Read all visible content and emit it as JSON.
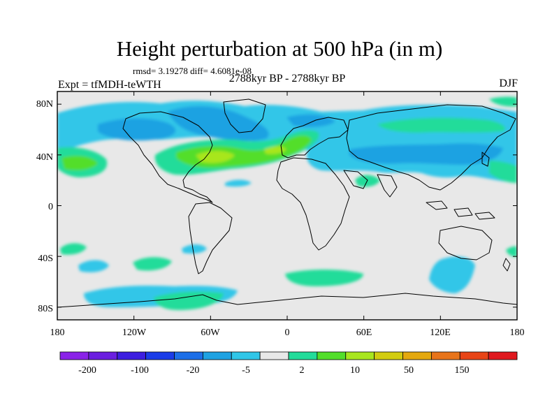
{
  "title": "Height perturbation at 500 hPa (in m)",
  "stats": "rmsd= 3.19278 diff= 4.6081e-08",
  "experiment": "Expt = tfMDH-teWTH",
  "period": "2788kyr BP - 2788kyr BP",
  "season": "DJF",
  "axes": {
    "lon_ticks": [
      "180",
      "120W",
      "60W",
      "0",
      "60E",
      "120E",
      "180"
    ],
    "lat_ticks": [
      "80N",
      "40N",
      "0",
      "40S",
      "80S"
    ],
    "lon_range": [
      -180,
      180
    ],
    "lat_range": [
      -90,
      90
    ]
  },
  "colorbar": {
    "colors": [
      "#8a22e8",
      "#6b1fe0",
      "#3d1ee0",
      "#1b3ce8",
      "#1d6fe8",
      "#1ea2e2",
      "#30c6e8",
      "#e8e8e8",
      "#22dc9a",
      "#52de2a",
      "#a8e61e",
      "#d2cc10",
      "#e4a80e",
      "#e8741a",
      "#e84416",
      "#e0181e"
    ],
    "labels": [
      "-200",
      "-100",
      "-20",
      "-5",
      "2",
      "10",
      "50",
      "150"
    ]
  },
  "colors": {
    "land_background": "#e8e8e8",
    "coast": "#000000"
  }
}
